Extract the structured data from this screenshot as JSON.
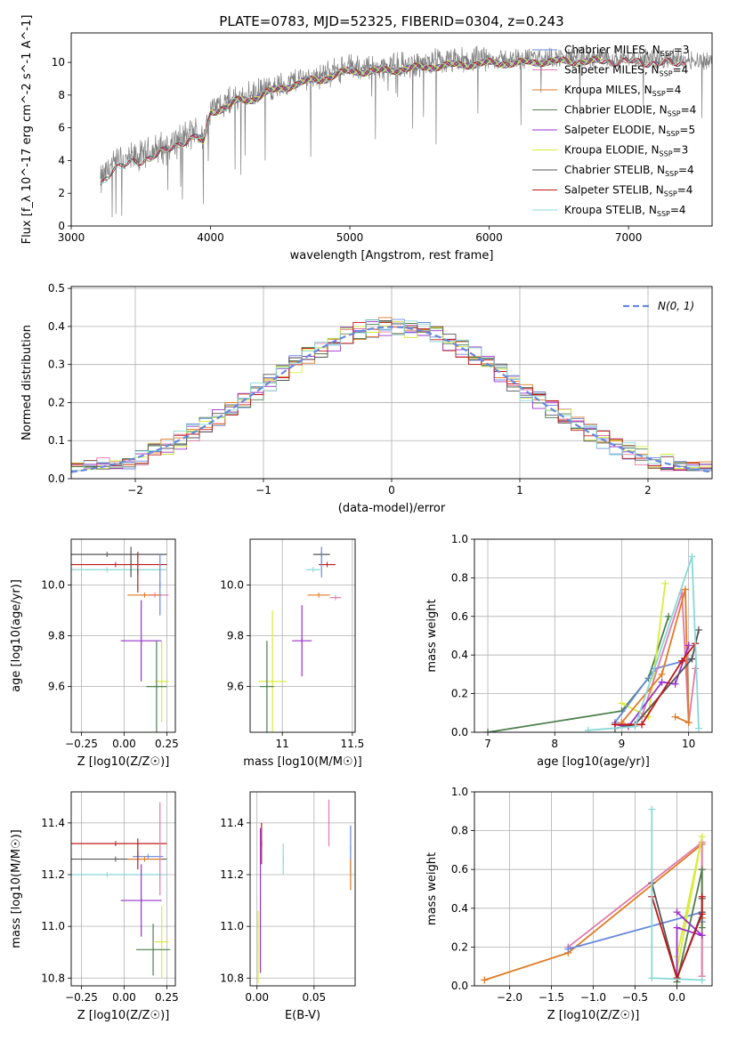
{
  "figure": {
    "title": "PLATE=0783, MJD=52325, FIBERID=0304, z=0.243"
  },
  "colors": {
    "chabrier_miles": "#6688dd",
    "salpeter_miles": "#e07aaa",
    "kroupa_miles": "#e07a24",
    "chabrier_elodie": "#4f7f4f",
    "salpeter_elodie": "#9932cc",
    "kroupa_elodie": "#d8ec3c",
    "chabrier_stelib": "#555555",
    "salpeter_stelib": "#c01818",
    "kroupa_stelib": "#88d8d8",
    "data": "#808080",
    "normal": "#6688dd",
    "grid": "#b0b0b0"
  },
  "chart_data": [
    {
      "id": "spectrum",
      "type": "line",
      "xlabel": "wavelength [Angstrom, rest frame]",
      "ylabel": "Flux [f_λ 10^-17 erg cm^-2 s^-1 A^-1]",
      "xlim": [
        3000,
        7600
      ],
      "ylim": [
        0,
        11.8
      ],
      "xticks": [
        3000,
        4000,
        5000,
        6000,
        7000
      ],
      "yticks": [
        0,
        2,
        4,
        6,
        8,
        10
      ],
      "grid": false,
      "legend_position": "top-right",
      "legend": [
        {
          "label": "Chabrier MILES, N",
          "sub": "SSP",
          "tail": "=3",
          "color": "chabrier_miles"
        },
        {
          "label": "Salpeter MILES, N",
          "sub": "SSP",
          "tail": "=4",
          "color": "salpeter_miles"
        },
        {
          "label": "Kroupa MILES, N",
          "sub": "SSP",
          "tail": "=4",
          "color": "kroupa_miles"
        },
        {
          "label": "Chabrier ELODIE, N",
          "sub": "SSP",
          "tail": "=4",
          "color": "chabrier_elodie"
        },
        {
          "label": "Salpeter ELODIE, N",
          "sub": "SSP",
          "tail": "=5",
          "color": "salpeter_elodie"
        },
        {
          "label": "Kroupa ELODIE, N",
          "sub": "SSP",
          "tail": "=3",
          "color": "kroupa_elodie"
        },
        {
          "label": "Chabrier STELIB, N",
          "sub": "SSP",
          "tail": "=4",
          "color": "chabrier_stelib"
        },
        {
          "label": "Salpeter STELIB, N",
          "sub": "SSP",
          "tail": "=4",
          "color": "salpeter_stelib"
        },
        {
          "label": "Kroupa STELIB, N",
          "sub": "SSP",
          "tail": "=4",
          "color": "kroupa_stelib"
        }
      ],
      "continuum": {
        "x": [
          3210,
          3300,
          3400,
          3500,
          3600,
          3700,
          3800,
          3900,
          3950,
          4000,
          4100,
          4200,
          4300,
          4400,
          4500,
          4600,
          4700,
          4800,
          4900,
          5000,
          5200,
          5400,
          5600,
          5800,
          6000,
          6200,
          6400,
          6600,
          6800,
          7000,
          7200,
          7400,
          7600
        ],
        "y": [
          2.7,
          3.8,
          4.0,
          4.2,
          4.6,
          4.9,
          5.4,
          5.7,
          5.3,
          7.2,
          7.5,
          7.9,
          8.0,
          8.4,
          8.6,
          8.9,
          9.1,
          9.2,
          9.5,
          9.7,
          9.7,
          9.85,
          10.0,
          10.1,
          10.2,
          10.2,
          10.3,
          10.3,
          10.3,
          10.3,
          10.2,
          10.2,
          10.1
        ]
      }
    },
    {
      "id": "residuals",
      "type": "line",
      "xlabel": "(data-model)/error",
      "ylabel": "Normed distribution",
      "xlim": [
        -2.5,
        2.5
      ],
      "ylim": [
        0,
        0.505
      ],
      "xticks": [
        -2,
        -1,
        0,
        1,
        2
      ],
      "yticks": [
        0.0,
        0.1,
        0.2,
        0.3,
        0.4,
        0.5
      ],
      "grid": true,
      "legend_position": "top-right",
      "legend_label": "N(0, 1)",
      "normal": {
        "mean": 0,
        "sigma": 1
      }
    },
    {
      "id": "age_vs_Z",
      "type": "scatter",
      "xlabel": "Z [log10(Z/Z☉)]",
      "ylabel": "age [log10(age/yr)]",
      "xlim": [
        -0.31,
        0.3
      ],
      "ylim": [
        9.42,
        10.18
      ],
      "xticks": [
        -0.25,
        0.0,
        0.25
      ],
      "xticklabels": [
        "−0.25",
        "0.00",
        "0.25"
      ],
      "yticks": [
        9.6,
        9.8,
        10.0
      ],
      "grid": true,
      "points": [
        {
          "x": -0.1,
          "y": 10.12,
          "xerr": 0.35,
          "yerr": 0.0,
          "color": "chabrier_stelib"
        },
        {
          "x": -0.05,
          "y": 10.08,
          "xerr": 0.3,
          "yerr": 0.0,
          "color": "salpeter_stelib"
        },
        {
          "x": -0.1,
          "y": 10.06,
          "xerr": 0.35,
          "yerr": 0.0,
          "color": "kroupa_stelib"
        },
        {
          "x": 0.04,
          "y": 10.09,
          "xerr": 0.0,
          "yerr": 0.06,
          "color": "chabrier_stelib"
        },
        {
          "x": 0.08,
          "y": 10.05,
          "xerr": 0.0,
          "yerr": 0.08,
          "color": "salpeter_stelib"
        },
        {
          "x": 0.18,
          "y": 9.96,
          "xerr": 0.08,
          "yerr": 0.0,
          "color": "salpeter_miles"
        },
        {
          "x": 0.12,
          "y": 9.96,
          "xerr": 0.1,
          "yerr": 0.0,
          "color": "kroupa_miles"
        },
        {
          "x": 0.21,
          "y": 10.0,
          "xerr": 0.0,
          "yerr": 0.12,
          "color": "chabrier_miles"
        },
        {
          "x": 0.1,
          "y": 9.78,
          "xerr": 0.12,
          "yerr": 0.16,
          "color": "salpeter_elodie"
        },
        {
          "x": 0.22,
          "y": 9.62,
          "xerr": 0.04,
          "yerr": 0.16,
          "color": "kroupa_elodie"
        },
        {
          "x": 0.19,
          "y": 9.6,
          "xerr": 0.06,
          "yerr": 0.18,
          "color": "chabrier_elodie"
        }
      ]
    },
    {
      "id": "age_vs_mass",
      "type": "scatter",
      "xlabel": "mass [log10(M/M☉)]",
      "ylabel": "",
      "xlim": [
        10.77,
        11.52
      ],
      "ylim": [
        9.42,
        10.18
      ],
      "xticks": [
        11.0,
        11.5
      ],
      "yticks": [
        9.6,
        9.8,
        10.0
      ],
      "grid": true,
      "points": [
        {
          "x": 11.28,
          "y": 10.12,
          "xerr": 0.06,
          "yerr": 0.0,
          "color": "chabrier_stelib"
        },
        {
          "x": 11.32,
          "y": 10.08,
          "xerr": 0.06,
          "yerr": 0.0,
          "color": "salpeter_stelib"
        },
        {
          "x": 11.22,
          "y": 10.06,
          "xerr": 0.05,
          "yerr": 0.0,
          "color": "kroupa_stelib"
        },
        {
          "x": 11.28,
          "y": 10.09,
          "xerr": 0.0,
          "yerr": 0.06,
          "color": "chabrier_miles"
        },
        {
          "x": 11.38,
          "y": 9.95,
          "xerr": 0.04,
          "yerr": 0.0,
          "color": "salpeter_miles"
        },
        {
          "x": 11.26,
          "y": 9.96,
          "xerr": 0.08,
          "yerr": 0.0,
          "color": "kroupa_miles"
        },
        {
          "x": 11.14,
          "y": 9.78,
          "xerr": 0.07,
          "yerr": 0.14,
          "color": "salpeter_elodie"
        },
        {
          "x": 10.93,
          "y": 9.62,
          "xerr": 0.1,
          "yerr": 0.28,
          "color": "kroupa_elodie"
        },
        {
          "x": 10.89,
          "y": 9.6,
          "xerr": 0.05,
          "yerr": 0.18,
          "color": "chabrier_elodie"
        }
      ]
    },
    {
      "id": "weight_vs_age",
      "type": "line",
      "xlabel": "age [log10(age/yr)]",
      "ylabel": "mass weight",
      "xlim": [
        6.8,
        10.35
      ],
      "ylim": [
        0,
        1.0
      ],
      "xticks": [
        7,
        8,
        9,
        10
      ],
      "yticks": [
        0.0,
        0.2,
        0.4,
        0.6,
        0.8,
        1.0
      ],
      "grid": true,
      "series": [
        {
          "color": "chabrier_elodie",
          "x": [
            7.0,
            9.0,
            9.4,
            9.7
          ],
          "y": [
            0.0,
            0.11,
            0.28,
            0.6
          ]
        },
        {
          "color": "kroupa_elodie",
          "x": [
            9.0,
            9.4,
            9.65
          ],
          "y": [
            0.15,
            0.08,
            0.77
          ]
        },
        {
          "color": "chabrier_miles",
          "x": [
            8.9,
            9.5,
            10.05
          ],
          "y": [
            0.05,
            0.33,
            0.38
          ]
        },
        {
          "color": "salpeter_miles",
          "x": [
            9.3,
            9.9,
            10.0,
            10.1
          ],
          "y": [
            0.08,
            0.72,
            0.05,
            0.33
          ]
        },
        {
          "color": "kroupa_miles",
          "x": [
            9.0,
            9.6,
            9.95,
            10.0,
            9.8
          ],
          "y": [
            0.05,
            0.3,
            0.74,
            0.05,
            0.08
          ]
        },
        {
          "color": "salpeter_elodie",
          "x": [
            8.9,
            9.1,
            9.6,
            9.8,
            10.0
          ],
          "y": [
            0.04,
            0.03,
            0.26,
            0.25,
            0.45
          ]
        },
        {
          "color": "chabrier_stelib",
          "x": [
            8.9,
            9.2,
            10.05,
            10.15
          ],
          "y": [
            0.02,
            0.04,
            0.38,
            0.53
          ]
        },
        {
          "color": "salpeter_stelib",
          "x": [
            8.9,
            9.3,
            9.9,
            10.1
          ],
          "y": [
            0.04,
            0.04,
            0.37,
            0.46
          ]
        },
        {
          "color": "kroupa_stelib",
          "x": [
            8.5,
            9.2,
            10.05,
            10.15
          ],
          "y": [
            0.01,
            0.03,
            0.91,
            0.02
          ]
        }
      ]
    },
    {
      "id": "mass_vs_Z",
      "type": "scatter",
      "xlabel": "Z [log10(Z/Z☉)]",
      "ylabel": "mass [log10(M/M☉)]",
      "xlim": [
        -0.31,
        0.3
      ],
      "ylim": [
        10.77,
        11.52
      ],
      "xticks": [
        -0.25,
        0.0,
        0.25
      ],
      "xticklabels": [
        "−0.25",
        "0.00",
        "0.25"
      ],
      "yticks": [
        10.8,
        11.0,
        11.2,
        11.4
      ],
      "grid": true,
      "points": [
        {
          "x": -0.05,
          "y": 11.32,
          "xerr": 0.3,
          "yerr": 0.0,
          "color": "salpeter_stelib"
        },
        {
          "x": -0.05,
          "y": 11.26,
          "xerr": 0.3,
          "yerr": 0.0,
          "color": "chabrier_stelib"
        },
        {
          "x": -0.1,
          "y": 11.2,
          "xerr": 0.35,
          "yerr": 0.0,
          "color": "kroupa_stelib"
        },
        {
          "x": 0.14,
          "y": 11.27,
          "xerr": 0.09,
          "yerr": 0.0,
          "color": "chabrier_miles"
        },
        {
          "x": 0.12,
          "y": 11.26,
          "xerr": 0.1,
          "yerr": 0.0,
          "color": "kroupa_miles"
        },
        {
          "x": 0.21,
          "y": 11.3,
          "xerr": 0.0,
          "yerr": 0.18,
          "color": "salpeter_miles"
        },
        {
          "x": 0.08,
          "y": 11.28,
          "xerr": 0.0,
          "yerr": 0.06,
          "color": "salpeter_stelib"
        },
        {
          "x": 0.1,
          "y": 11.1,
          "xerr": 0.12,
          "yerr": 0.14,
          "color": "salpeter_elodie"
        },
        {
          "x": 0.22,
          "y": 10.94,
          "xerr": 0.04,
          "yerr": 0.14,
          "color": "kroupa_elodie"
        },
        {
          "x": 0.17,
          "y": 10.91,
          "xerr": 0.1,
          "yerr": 0.1,
          "color": "chabrier_elodie"
        }
      ]
    },
    {
      "id": "mass_vs_ebv",
      "type": "scatter",
      "xlabel": "E(B-V)",
      "ylabel": "",
      "xlim": [
        -0.006,
        0.086
      ],
      "ylim": [
        10.77,
        11.52
      ],
      "xticks": [
        0.0,
        0.05
      ],
      "xticklabels": [
        "0.00",
        "0.05"
      ],
      "yticks": [
        10.8,
        11.0,
        11.2,
        11.4
      ],
      "grid": true,
      "points": [
        {
          "x": 0.004,
          "y": 11.32,
          "xerr": 0.0,
          "yerr": 0.08,
          "color": "salpeter_stelib"
        },
        {
          "x": 0.003,
          "y": 11.1,
          "xerr": 0.0,
          "yerr": 0.28,
          "color": "salpeter_elodie"
        },
        {
          "x": 0.001,
          "y": 10.92,
          "xerr": 0.0,
          "yerr": 0.14,
          "color": "kroupa_elodie"
        },
        {
          "x": 0.023,
          "y": 11.26,
          "xerr": 0.0,
          "yerr": 0.06,
          "color": "kroupa_stelib"
        },
        {
          "x": 0.063,
          "y": 11.4,
          "xerr": 0.0,
          "yerr": 0.09,
          "color": "salpeter_miles"
        },
        {
          "x": 0.082,
          "y": 11.3,
          "xerr": 0.0,
          "yerr": 0.09,
          "color": "chabrier_miles"
        },
        {
          "x": 0.082,
          "y": 11.2,
          "xerr": 0.0,
          "yerr": 0.06,
          "color": "kroupa_miles"
        }
      ]
    },
    {
      "id": "weight_vs_Z",
      "type": "line",
      "xlabel": "Z [log10(Z/Z☉)]",
      "ylabel": "mass weight",
      "xlim": [
        -2.42,
        0.42
      ],
      "ylim": [
        0,
        1.0
      ],
      "xticks": [
        -2.0,
        -1.5,
        -1.0,
        -0.5,
        0.0
      ],
      "xticklabels": [
        "−2.0",
        "−1.5",
        "−1.0",
        "−0.5",
        "0.0"
      ],
      "yticks": [
        0.0,
        0.2,
        0.4,
        0.6,
        0.8,
        1.0
      ],
      "grid": true,
      "series": [
        {
          "color": "kroupa_miles",
          "x": [
            -2.3,
            -1.3,
            0.3,
            0.3,
            0.3
          ],
          "y": [
            0.03,
            0.17,
            0.73,
            0.35,
            0.05
          ]
        },
        {
          "color": "salpeter_miles",
          "x": [
            -1.3,
            0.3,
            0.3
          ],
          "y": [
            0.2,
            0.74,
            0.05
          ]
        },
        {
          "color": "chabrier_miles",
          "x": [
            -1.3,
            0.3,
            0.3
          ],
          "y": [
            0.19,
            0.38,
            0.33
          ]
        },
        {
          "color": "kroupa_elodie",
          "x": [
            0.0,
            0.3,
            0.0
          ],
          "y": [
            0.08,
            0.77,
            0.15
          ]
        },
        {
          "color": "chabrier_elodie",
          "x": [
            0.0,
            0.3,
            0.3
          ],
          "y": [
            0.02,
            0.6,
            0.3
          ]
        },
        {
          "color": "salpeter_elodie",
          "x": [
            0.0,
            0.3,
            0.0,
            0.0
          ],
          "y": [
            0.38,
            0.26,
            0.3,
            0.04
          ]
        },
        {
          "color": "chabrier_stelib",
          "x": [
            -0.3,
            0.0,
            0.3,
            0.3
          ],
          "y": [
            0.53,
            0.04,
            0.38,
            0.45
          ]
        },
        {
          "color": "salpeter_stelib",
          "x": [
            -0.3,
            0.0,
            0.3,
            0.3
          ],
          "y": [
            0.46,
            0.04,
            0.37,
            0.46
          ]
        },
        {
          "color": "kroupa_stelib",
          "x": [
            -0.3,
            -0.3,
            0.3
          ],
          "y": [
            0.91,
            0.04,
            0.03
          ]
        }
      ]
    }
  ]
}
